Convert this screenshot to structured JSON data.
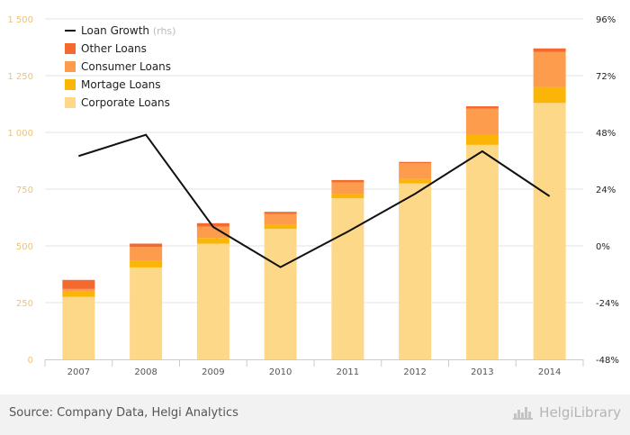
{
  "source_text": "Source: Company Data, Helgi Analytics",
  "brand_text": "HelgiLibrary",
  "brand_icon": "helgi-library-logo-icon",
  "colors": {
    "corporate": "#fdd888",
    "mortgage": "#fbb506",
    "consumer": "#fd9c4c",
    "other": "#f46a2e",
    "growth_line": "#111111",
    "left_axis_text": "#f5c26b",
    "right_axis_text": "#222222",
    "x_axis_text": "#555555",
    "grid": "#e3e3e3"
  },
  "chart_data": {
    "type": "bar",
    "stacked": true,
    "categories": [
      "2007",
      "2008",
      "2009",
      "2010",
      "2011",
      "2012",
      "2013",
      "2014"
    ],
    "series": [
      {
        "name": "Corporate Loans",
        "color_key": "corporate",
        "values": [
          275,
          405,
          510,
          575,
          710,
          775,
          945,
          1130
        ]
      },
      {
        "name": "Mortage Loans",
        "color_key": "mortgage",
        "values": [
          25,
          30,
          25,
          20,
          20,
          20,
          45,
          70
        ]
      },
      {
        "name": "Consumer Loans",
        "color_key": "consumer",
        "values": [
          10,
          60,
          50,
          45,
          50,
          70,
          115,
          155
        ]
      },
      {
        "name": "Other Loans",
        "color_key": "other",
        "values": [
          40,
          15,
          15,
          10,
          10,
          5,
          10,
          15
        ]
      }
    ],
    "line_series": {
      "name": "Loan Growth",
      "legend_suffix": "(rhs)",
      "axis": "right",
      "values": [
        38,
        47,
        8,
        -9,
        6,
        22,
        40,
        21
      ]
    },
    "y_left": {
      "min": 0,
      "max": 1500,
      "ticks": [
        0,
        250,
        500,
        750,
        1000,
        1250,
        1500
      ],
      "tick_labels": [
        "0",
        "250",
        "500",
        "750",
        "1 000",
        "1 250",
        "1 500"
      ]
    },
    "y_right": {
      "min": -48,
      "max": 96,
      "ticks": [
        -48,
        -24,
        0,
        24,
        48,
        72,
        96
      ],
      "tick_labels": [
        "-48%",
        "-24%",
        "0%",
        "24%",
        "48%",
        "72%",
        "96%"
      ]
    },
    "grid": true,
    "legend_position": "top-left",
    "legend_order": [
      "line",
      "Other Loans",
      "Consumer Loans",
      "Mortage Loans",
      "Corporate Loans"
    ]
  }
}
